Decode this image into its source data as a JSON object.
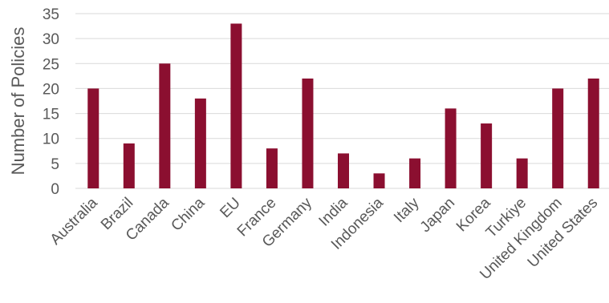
{
  "chart_data": {
    "type": "bar",
    "title": "",
    "xlabel": "",
    "ylabel": "Number of Policies",
    "ylim": [
      0,
      35
    ],
    "yticks": [
      0,
      5,
      10,
      15,
      20,
      25,
      30,
      35
    ],
    "grid": true,
    "legend": "none",
    "bar_color": "#8b0f30",
    "categories": [
      "Australia",
      "Brazil",
      "Canada",
      "China",
      "EU",
      "France",
      "Germany",
      "India",
      "Indonesia",
      "Italy",
      "Japan",
      "Korea",
      "Turkiye",
      "United Kingdom",
      "United States"
    ],
    "values": [
      20,
      9,
      25,
      18,
      33,
      8,
      22,
      7,
      3,
      6,
      16,
      13,
      6,
      20,
      22
    ]
  }
}
